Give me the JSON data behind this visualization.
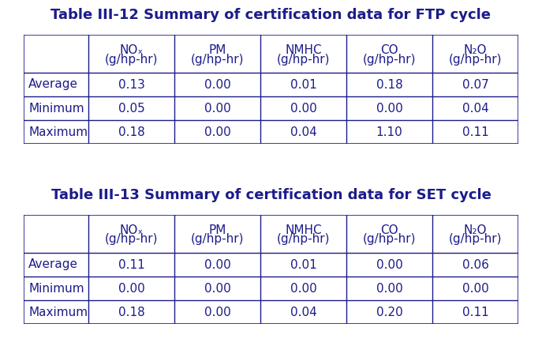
{
  "title1": "Table III-12 Summary of certification data for FTP cycle",
  "title2": "Table III-13 Summary of certification data for SET cycle",
  "col_headers_line1": [
    "NOₓ",
    "PM",
    "NMHC",
    "CO",
    "N₂O"
  ],
  "col_headers_line2": [
    "(g/hp-hr)",
    "(g/hp-hr)",
    "(g/hp-hr)",
    "(g/hp-hr)",
    "(g/hp-hr)"
  ],
  "row_headers": [
    "Average",
    "Minimum",
    "Maximum"
  ],
  "table1_data": [
    [
      "0.13",
      "0.00",
      "0.01",
      "0.18",
      "0.07"
    ],
    [
      "0.05",
      "0.00",
      "0.00",
      "0.00",
      "0.04"
    ],
    [
      "0.18",
      "0.00",
      "0.04",
      "1.10",
      "0.11"
    ]
  ],
  "table2_data": [
    [
      "0.11",
      "0.00",
      "0.01",
      "0.00",
      "0.06"
    ],
    [
      "0.00",
      "0.00",
      "0.00",
      "0.00",
      "0.00"
    ],
    [
      "0.18",
      "0.00",
      "0.04",
      "0.20",
      "0.11"
    ]
  ],
  "bg_color": "#ffffff",
  "text_color": "#1c1c8a",
  "title_fontsize": 13,
  "cell_fontsize": 11,
  "border_color": "#1c1c8a",
  "fig_width": 6.87,
  "fig_height": 4.43,
  "dpi": 100
}
